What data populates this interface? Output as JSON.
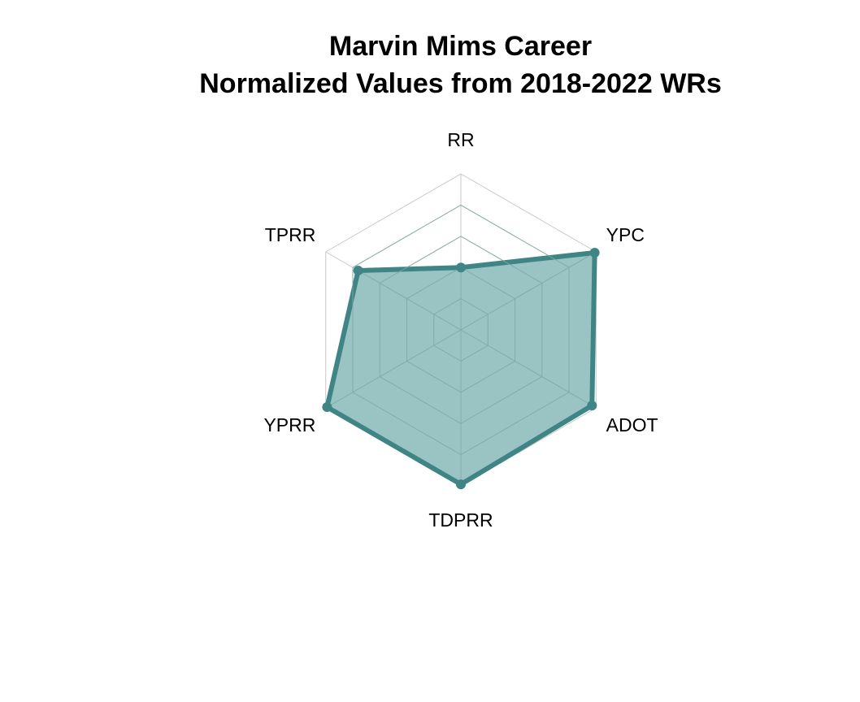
{
  "chart_data": {
    "type": "radar",
    "title_line1": "Marvin Mims Career",
    "title_line2": "Normalized Values from 2018-2022 WRs",
    "axes": [
      "RR",
      "YPC",
      "ADOT",
      "TDPRR",
      "YPRR",
      "TPRR"
    ],
    "values": [
      0.4,
      0.99,
      0.97,
      0.99,
      0.99,
      0.76
    ],
    "scale": [
      0,
      1
    ],
    "grid_levels": 5,
    "grid": true,
    "colors": {
      "line": "#3f8585",
      "fill": "#8fbcbc",
      "grid": "#c8c8c8",
      "inner_grid": "#7fa8a8"
    }
  }
}
